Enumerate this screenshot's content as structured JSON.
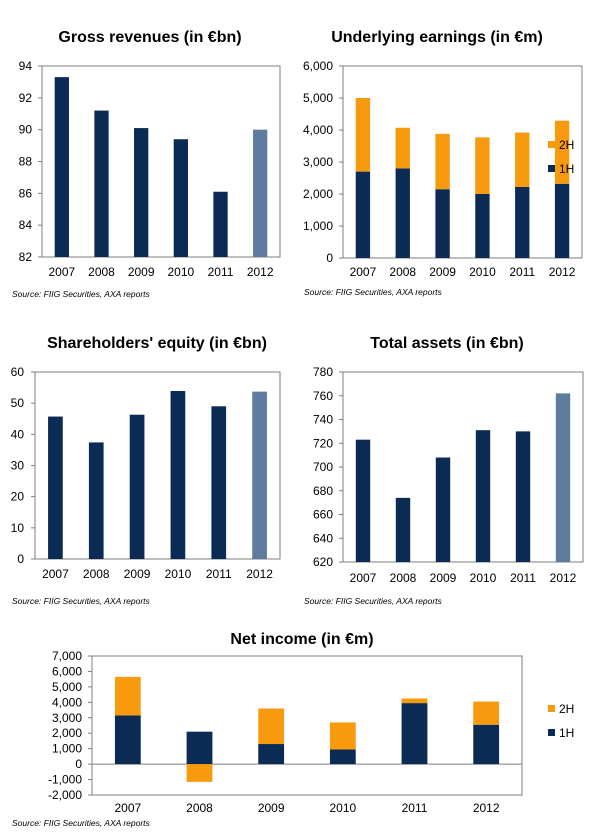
{
  "source_note": "Source: FIIG Securities, AXA reports",
  "colors": {
    "navy": "#0B2B55",
    "steel": "#5E7D9E",
    "orange": "#F79A0E",
    "axis": "#7F7F7F"
  },
  "chart_data": [
    {
      "id": "gross",
      "type": "bar",
      "title": "Gross revenues (in €bn)",
      "categories": [
        "2007",
        "2008",
        "2009",
        "2010",
        "2011",
        "2012"
      ],
      "values": [
        93.3,
        91.2,
        90.1,
        89.4,
        86.1,
        90.0
      ],
      "highlight_last": true,
      "ylim": [
        82,
        94
      ],
      "yticks": [
        "82",
        "84",
        "86",
        "88",
        "90",
        "92",
        "94"
      ]
    },
    {
      "id": "underlying",
      "type": "bar",
      "stacked": true,
      "title": "Underlying earnings (in €m)",
      "categories": [
        "2007",
        "2008",
        "2009",
        "2010",
        "2011",
        "2012"
      ],
      "series": [
        {
          "name": "1H",
          "values": [
            2700,
            2800,
            2150,
            2000,
            2220,
            2320
          ]
        },
        {
          "name": "2H",
          "values": [
            2300,
            1270,
            1730,
            1770,
            1700,
            1970
          ]
        }
      ],
      "ylim": [
        0,
        6000
      ],
      "yticks": [
        "0",
        "1,000",
        "2,000",
        "3,000",
        "4,000",
        "5,000",
        "6,000"
      ],
      "legend": "right"
    },
    {
      "id": "equity",
      "type": "bar",
      "title": "Shareholders' equity (in €bn)",
      "categories": [
        "2007",
        "2008",
        "2009",
        "2010",
        "2011",
        "2012"
      ],
      "values": [
        45.7,
        37.4,
        46.3,
        53.9,
        49.0,
        53.7
      ],
      "highlight_last": true,
      "ylim": [
        0,
        60
      ],
      "yticks": [
        "0",
        "10",
        "20",
        "30",
        "40",
        "50",
        "60"
      ]
    },
    {
      "id": "assets",
      "type": "bar",
      "title": "Total assets (in €bn)",
      "categories": [
        "2007",
        "2008",
        "2009",
        "2010",
        "2011",
        "2012"
      ],
      "values": [
        723,
        674,
        708,
        731,
        730,
        762
      ],
      "highlight_last": true,
      "ylim": [
        620,
        780
      ],
      "yticks": [
        "620",
        "640",
        "660",
        "680",
        "700",
        "720",
        "740",
        "760",
        "780"
      ]
    },
    {
      "id": "netincome",
      "type": "bar",
      "stacked": true,
      "title": "Net income (in €m)",
      "categories": [
        "2007",
        "2008",
        "2009",
        "2010",
        "2011",
        "2012"
      ],
      "series": [
        {
          "name": "1H",
          "values": [
            3150,
            2100,
            1300,
            950,
            3950,
            2550
          ]
        },
        {
          "name": "2H",
          "values": [
            2500,
            -1150,
            2300,
            1750,
            300,
            1500
          ]
        }
      ],
      "ylim": [
        -2000,
        7000
      ],
      "yticks": [
        "-2,000",
        "-1,000",
        "0",
        "1,000",
        "2,000",
        "3,000",
        "4,000",
        "5,000",
        "6,000",
        "7,000"
      ],
      "legend": "right"
    }
  ]
}
